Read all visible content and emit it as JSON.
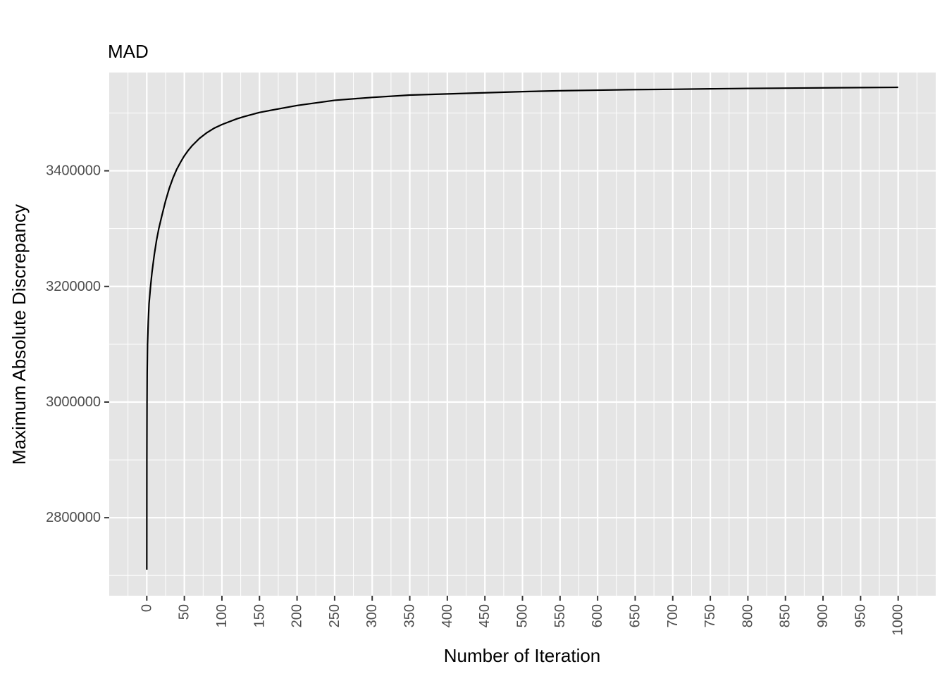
{
  "chart_data": {
    "type": "line",
    "title": "MAD",
    "xlabel": "Number of Iteration",
    "ylabel": "Maximum Absolute Discrepancy",
    "xlim": [
      -50,
      1050
    ],
    "ylim": [
      2665000,
      3570000
    ],
    "x_ticks": [
      0,
      50,
      100,
      150,
      200,
      250,
      300,
      350,
      400,
      450,
      500,
      550,
      600,
      650,
      700,
      750,
      800,
      850,
      900,
      950,
      1000
    ],
    "y_ticks": [
      2800000,
      3000000,
      3200000,
      3400000
    ],
    "y_tick_labels": [
      "2800000",
      "3000000",
      "3200000",
      "3400000"
    ],
    "grid": true,
    "legend": "none",
    "colors": {
      "panel": "#e5e5e5",
      "grid": "#ffffff",
      "line": "#000000",
      "tick_text": "#4d4d4d"
    },
    "series": [
      {
        "x": [
          0,
          0.1,
          0.3,
          0.5,
          1,
          2,
          3,
          5,
          7,
          10,
          13,
          16,
          20,
          25,
          30,
          35,
          40,
          45,
          50,
          55,
          60,
          70,
          80,
          90,
          100,
          110,
          120,
          130,
          150,
          175,
          200,
          250,
          300,
          350,
          400,
          450,
          500,
          550,
          600,
          650,
          700,
          750,
          800,
          850,
          900,
          950,
          1000
        ],
        "y": [
          2710000,
          2900000,
          3000000,
          3050000,
          3100000,
          3140000,
          3170000,
          3200000,
          3225000,
          3255000,
          3280000,
          3300000,
          3322000,
          3348000,
          3370000,
          3388000,
          3403000,
          3415000,
          3426000,
          3435000,
          3443000,
          3456000,
          3466000,
          3474000,
          3480000,
          3485000,
          3490000,
          3494000,
          3501000,
          3507000,
          3513000,
          3522000,
          3527000,
          3531000,
          3533000,
          3535000,
          3537000,
          3538500,
          3539500,
          3540500,
          3541000,
          3541800,
          3542500,
          3543000,
          3543500,
          3544000,
          3544400
        ]
      }
    ]
  }
}
